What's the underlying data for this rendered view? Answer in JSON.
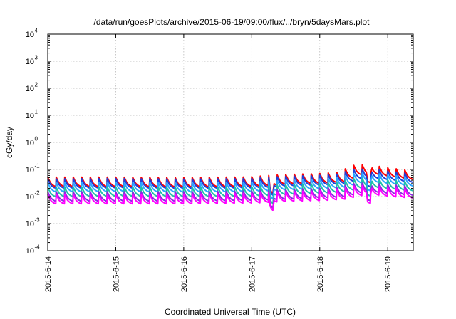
{
  "chart_data": {
    "type": "line",
    "title": "/data/run/goesPlots/archive/2015-06-19/09:00/flux/../bryn/5daysMars.plot",
    "xlabel": "Coordinated Universal Time (UTC)",
    "ylabel": "cGy/day",
    "yscale": "log",
    "ylim": [
      0.0001,
      10000
    ],
    "xlim": [
      "2015-06-14T00:00",
      "2015-06-19T09:00"
    ],
    "grid": true,
    "x_ticks": [
      "2015-6-14",
      "2015-6-15",
      "2015-6-16",
      "2015-6-17",
      "2015-6-18",
      "2015-6-19"
    ],
    "y_ticks": [
      {
        "value": 0.0001,
        "base": "10",
        "exp": "-4"
      },
      {
        "value": 0.001,
        "base": "10",
        "exp": "-3"
      },
      {
        "value": 0.01,
        "base": "10",
        "exp": "-2"
      },
      {
        "value": 0.1,
        "base": "10",
        "exp": "-1"
      },
      {
        "value": 1,
        "base": "10",
        "exp": "0"
      },
      {
        "value": 10,
        "base": "10",
        "exp": "1"
      },
      {
        "value": 100,
        "base": "10",
        "exp": "2"
      },
      {
        "value": 1000,
        "base": "10",
        "exp": "3"
      },
      {
        "value": 10000,
        "base": "10",
        "exp": "4"
      }
    ],
    "pattern": {
      "cycle_hours": 3,
      "description": "sawtooth: sharp rise at start of each cycle, then decay",
      "profile": [
        1.0,
        0.78,
        0.62,
        0.55,
        0.5,
        0.47,
        0.45
      ]
    },
    "series": [
      {
        "color": "#ff0000",
        "peaks": [
          [
            0,
            0.052
          ],
          [
            24,
            0.052
          ],
          [
            48,
            0.05
          ],
          [
            72,
            0.053
          ],
          [
            84,
            0.065
          ],
          [
            96,
            0.07
          ],
          [
            104,
            0.08
          ],
          [
            108,
            0.14
          ],
          [
            114,
            0.15
          ],
          [
            120,
            0.12
          ],
          [
            129,
            0.09
          ]
        ]
      },
      {
        "color": "#1f3fd9",
        "peaks": [
          [
            0,
            0.045
          ],
          [
            24,
            0.046
          ],
          [
            48,
            0.044
          ],
          [
            72,
            0.046
          ],
          [
            84,
            0.055
          ],
          [
            96,
            0.06
          ],
          [
            104,
            0.068
          ],
          [
            108,
            0.1
          ],
          [
            114,
            0.105
          ],
          [
            120,
            0.09
          ],
          [
            129,
            0.07
          ]
        ]
      },
      {
        "color": "#2aa5ff",
        "peaks": [
          [
            0,
            0.033
          ],
          [
            24,
            0.034
          ],
          [
            48,
            0.032
          ],
          [
            72,
            0.034
          ],
          [
            84,
            0.04
          ],
          [
            96,
            0.044
          ],
          [
            104,
            0.05
          ],
          [
            108,
            0.07
          ],
          [
            114,
            0.075
          ],
          [
            120,
            0.065
          ],
          [
            129,
            0.052
          ]
        ]
      },
      {
        "color": "#20c0a8",
        "peaks": [
          [
            0,
            0.022
          ],
          [
            24,
            0.023
          ],
          [
            48,
            0.022
          ],
          [
            72,
            0.023
          ],
          [
            84,
            0.027
          ],
          [
            96,
            0.03
          ],
          [
            104,
            0.034
          ],
          [
            108,
            0.045
          ],
          [
            114,
            0.048
          ],
          [
            120,
            0.042
          ],
          [
            129,
            0.035
          ]
        ]
      },
      {
        "color": "#8a2be2",
        "peaks": [
          [
            0,
            0.015
          ],
          [
            24,
            0.015
          ],
          [
            48,
            0.015
          ],
          [
            72,
            0.016
          ],
          [
            84,
            0.018
          ],
          [
            96,
            0.02
          ],
          [
            104,
            0.022
          ],
          [
            108,
            0.03
          ],
          [
            114,
            0.032
          ],
          [
            120,
            0.028
          ],
          [
            129,
            0.024
          ]
        ]
      },
      {
        "color": "#ff00ff",
        "peaks": [
          [
            0,
            0.012
          ],
          [
            24,
            0.012
          ],
          [
            48,
            0.012
          ],
          [
            72,
            0.013
          ],
          [
            84,
            0.015
          ],
          [
            96,
            0.016
          ],
          [
            104,
            0.018
          ],
          [
            108,
            0.024
          ],
          [
            114,
            0.026
          ],
          [
            120,
            0.022
          ],
          [
            129,
            0.019
          ]
        ]
      }
    ],
    "dips": [
      [
        79,
        0.4
      ],
      [
        113.5,
        0.5
      ]
    ]
  }
}
